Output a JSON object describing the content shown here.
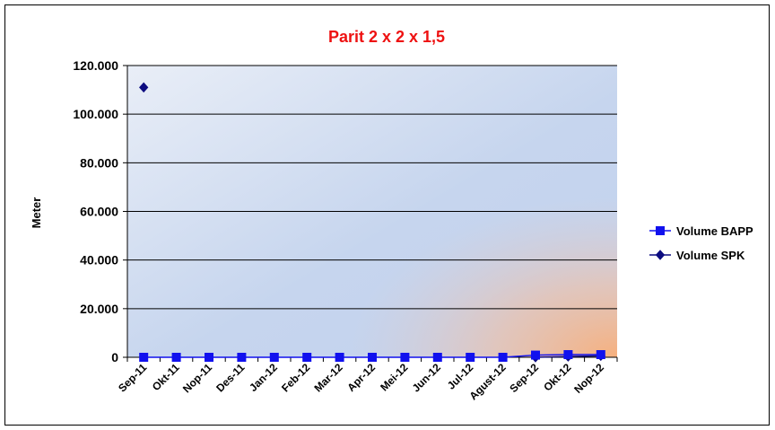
{
  "chart_data": {
    "type": "line",
    "title": "Parit 2 x 2 x 1,5",
    "xlabel": "",
    "ylabel": "Meter",
    "categories": [
      "Sep-11",
      "Okt-11",
      "Nop-11",
      "Des-11",
      "Jan-12",
      "Feb-12",
      "Mar-12",
      "Apr-12",
      "Mei-12",
      "Jun-12",
      "Jul-12",
      "Agust-12",
      "Sep-12",
      "Okt-12",
      "Nop-12"
    ],
    "ylim": [
      0,
      120000
    ],
    "yticks": [
      0,
      20000,
      40000,
      60000,
      80000,
      100000,
      120000
    ],
    "ytick_labels": [
      "0",
      "20.000",
      "40.000",
      "60.000",
      "80.000",
      "100.000",
      "120.000"
    ],
    "grid": true,
    "legend_position": "right",
    "series": [
      {
        "name": "Volume BAPP",
        "marker": "square",
        "color": "#1111ee",
        "values": [
          0,
          0,
          0,
          0,
          0,
          0,
          0,
          0,
          0,
          0,
          0,
          0,
          900,
          1100,
          1100
        ]
      },
      {
        "name": "Volume SPK",
        "marker": "diamond",
        "color": "#0d0d80",
        "values": [
          111000,
          null,
          null,
          null,
          null,
          null,
          null,
          null,
          null,
          null,
          null,
          null,
          0,
          300,
          600
        ]
      }
    ]
  },
  "colors": {
    "title": "#ee1111",
    "plot_bg_light": "#e6ecf6",
    "plot_bg_blue": "#c4d4ef",
    "plot_bg_orange": "#f4b48a"
  }
}
